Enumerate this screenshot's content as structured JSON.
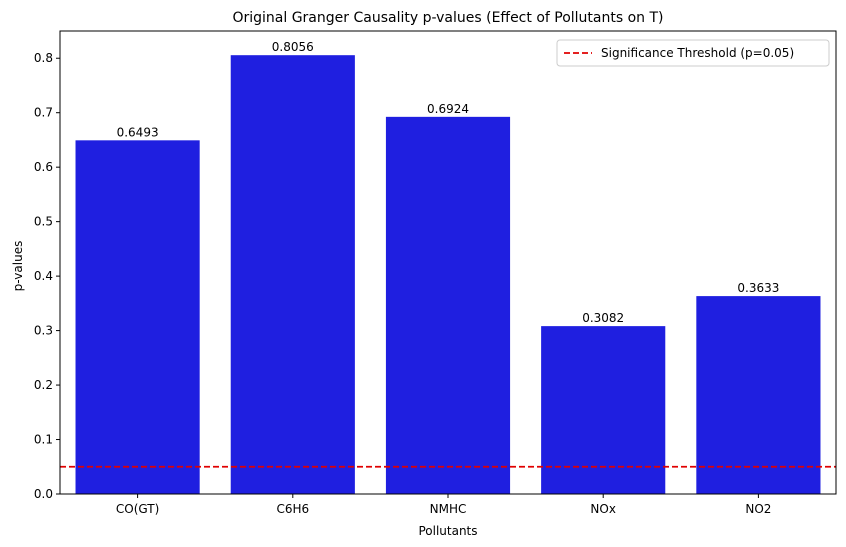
{
  "chart_data": {
    "type": "bar",
    "title": "Original Granger Causality p-values (Effect of Pollutants on T)",
    "xlabel": "Pollutants",
    "ylabel": "p-values",
    "categories": [
      "CO(GT)",
      "C6H6",
      "NMHC",
      "NOx",
      "NO2"
    ],
    "values": [
      0.6493,
      0.8056,
      0.6924,
      0.3082,
      0.3633
    ],
    "value_labels": [
      "0.6493",
      "0.8056",
      "0.6924",
      "0.3082",
      "0.3633"
    ],
    "ylim": [
      0,
      0.85
    ],
    "yticks": [
      0.0,
      0.1,
      0.2,
      0.3,
      0.4,
      0.5,
      0.6,
      0.7,
      0.8
    ],
    "ytick_labels": [
      "0.0",
      "0.1",
      "0.2",
      "0.3",
      "0.4",
      "0.5",
      "0.6",
      "0.7",
      "0.8"
    ],
    "bar_color": "#1f1fe0",
    "threshold": {
      "value": 0.05,
      "label": "Significance Threshold (p=0.05)",
      "color": "#e00000",
      "style": "dashed"
    },
    "grid": false,
    "legend_position": "top-right"
  }
}
